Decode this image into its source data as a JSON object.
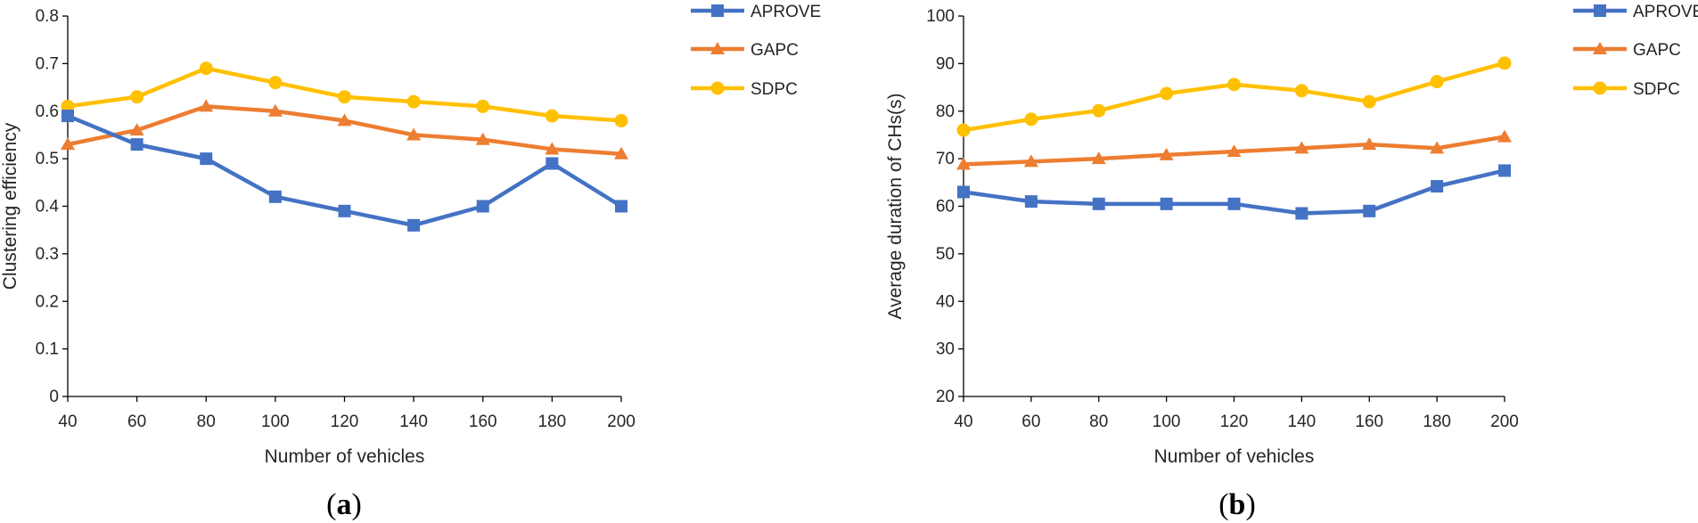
{
  "colors": {
    "APROVE": "#4472C4",
    "GAPC": "#ED7D31",
    "SDPC": "#FFC000",
    "axis": "#000000",
    "text": "#262626"
  },
  "chart_data": [
    {
      "type": "line",
      "panel_label": {
        "open": "(",
        "letter": "a",
        "close": ")"
      },
      "title": "",
      "xlabel": "Number of vehicles",
      "ylabel": "Clustering efficiency",
      "x": [
        40,
        60,
        80,
        100,
        120,
        140,
        160,
        180,
        200
      ],
      "x_tick_labels": [
        "40",
        "60",
        "80",
        "100",
        "120",
        "140",
        "160",
        "180",
        "200"
      ],
      "ylim": [
        0,
        0.8
      ],
      "y_ticks": [
        0,
        0.1,
        0.2,
        0.3,
        0.4,
        0.5,
        0.6,
        0.7,
        0.8
      ],
      "y_tick_labels": [
        "0",
        "0.1",
        "0.2",
        "0.3",
        "0.4",
        "0.5",
        "0.6",
        "0.7",
        "0.8"
      ],
      "grid": false,
      "legend": "right",
      "series": [
        {
          "name": "APROVE",
          "marker": "square",
          "values": [
            0.59,
            0.53,
            0.5,
            0.42,
            0.39,
            0.36,
            0.4,
            0.49,
            0.4
          ]
        },
        {
          "name": "GAPC",
          "marker": "triangle",
          "values": [
            0.53,
            0.56,
            0.61,
            0.6,
            0.58,
            0.55,
            0.54,
            0.52,
            0.51
          ]
        },
        {
          "name": "SDPC",
          "marker": "circle",
          "values": [
            0.61,
            0.63,
            0.69,
            0.66,
            0.63,
            0.62,
            0.61,
            0.59,
            0.58
          ]
        }
      ]
    },
    {
      "type": "line",
      "panel_label": {
        "open": "(",
        "letter": "b",
        "close": ")"
      },
      "title": "",
      "xlabel": "Number of vehicles",
      "ylabel": "Average duration of CHs(s)",
      "x": [
        40,
        60,
        80,
        100,
        120,
        140,
        160,
        180,
        200
      ],
      "x_tick_labels": [
        "40",
        "60",
        "80",
        "100",
        "120",
        "140",
        "160",
        "180",
        "200"
      ],
      "ylim": [
        20,
        100
      ],
      "y_ticks": [
        20,
        30,
        40,
        50,
        60,
        70,
        80,
        90,
        100
      ],
      "y_tick_labels": [
        "20",
        "30",
        "40",
        "50",
        "60",
        "70",
        "80",
        "90",
        "100"
      ],
      "grid": false,
      "legend": "right",
      "series": [
        {
          "name": "APROVE",
          "marker": "square",
          "values": [
            63.0,
            61.0,
            60.5,
            60.5,
            60.5,
            58.5,
            59.0,
            64.2,
            67.5
          ]
        },
        {
          "name": "GAPC",
          "marker": "triangle",
          "values": [
            68.8,
            69.4,
            70.0,
            70.8,
            71.5,
            72.2,
            73.0,
            72.2,
            74.6
          ]
        },
        {
          "name": "SDPC",
          "marker": "circle",
          "values": [
            76.0,
            78.3,
            80.1,
            83.7,
            85.6,
            84.3,
            82.0,
            86.2,
            90.1
          ]
        }
      ]
    }
  ]
}
